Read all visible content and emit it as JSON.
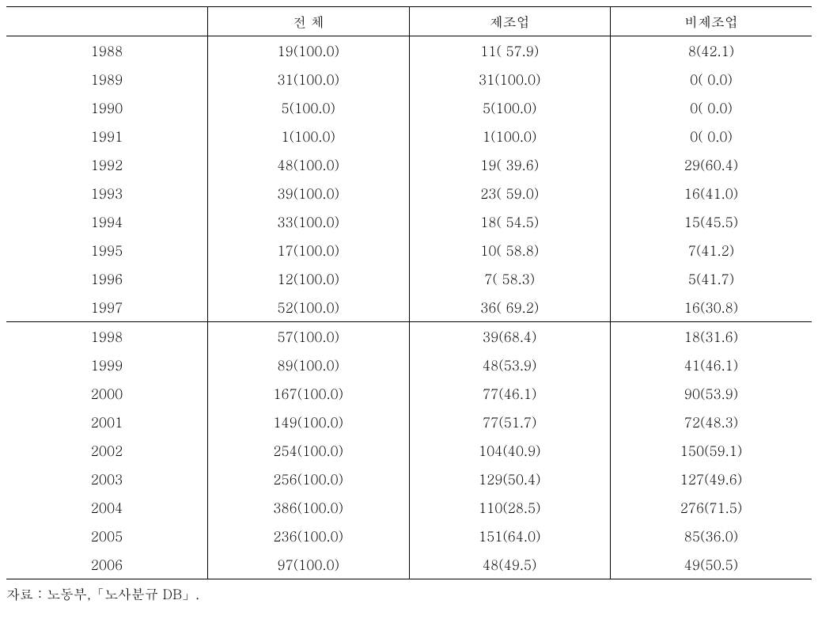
{
  "table": {
    "columns": [
      "",
      "전 체",
      "제조업",
      "비제조업"
    ],
    "column_alignment": [
      "center",
      "center",
      "center",
      "center"
    ],
    "background_color": "#ffffff",
    "text_color": "#000000",
    "font_size_pt": 13,
    "border_color": "#000000",
    "section_split_after_row_index": 9,
    "rows": [
      [
        "1988",
        "19(100.0)",
        "11( 57.9)",
        "8(42.1)"
      ],
      [
        "1989",
        "31(100.0)",
        "31(100.0)",
        "0( 0.0)"
      ],
      [
        "1990",
        "5(100.0)",
        "5(100.0)",
        "0( 0.0)"
      ],
      [
        "1991",
        "1(100.0)",
        "1(100.0)",
        "0( 0.0)"
      ],
      [
        "1992",
        "48(100.0)",
        "19( 39.6)",
        "29(60.4)"
      ],
      [
        "1993",
        "39(100.0)",
        "23( 59.0)",
        "16(41.0)"
      ],
      [
        "1994",
        "33(100.0)",
        "18( 54.5)",
        "15(45.5)"
      ],
      [
        "1995",
        "17(100.0)",
        "10( 58.8)",
        "7(41.2)"
      ],
      [
        "1996",
        "12(100.0)",
        "7( 58.3)",
        "5(41.7)"
      ],
      [
        "1997",
        "52(100.0)",
        "36( 69.2)",
        "16(30.8)"
      ],
      [
        "1998",
        "57(100.0)",
        "39(68.4)",
        "18(31.6)"
      ],
      [
        "1999",
        "89(100.0)",
        "48(53.9)",
        "41(46.1)"
      ],
      [
        "2000",
        "167(100.0)",
        "77(46.1)",
        "90(53.9)"
      ],
      [
        "2001",
        "149(100.0)",
        "77(51.7)",
        "72(48.3)"
      ],
      [
        "2002",
        "254(100.0)",
        "104(40.9)",
        "150(59.1)"
      ],
      [
        "2003",
        "256(100.0)",
        "129(50.4)",
        "127(49.6)"
      ],
      [
        "2004",
        "386(100.0)",
        "110(28.5)",
        "276(71.5)"
      ],
      [
        "2005",
        "236(100.0)",
        "151(64.0)",
        "85(36.0)"
      ],
      [
        "2006",
        "97(100.0)",
        "48(49.5)",
        "49(50.5)"
      ]
    ]
  },
  "source": {
    "label": "자료 :",
    "text": "노동부,「노사분규 DB」."
  }
}
